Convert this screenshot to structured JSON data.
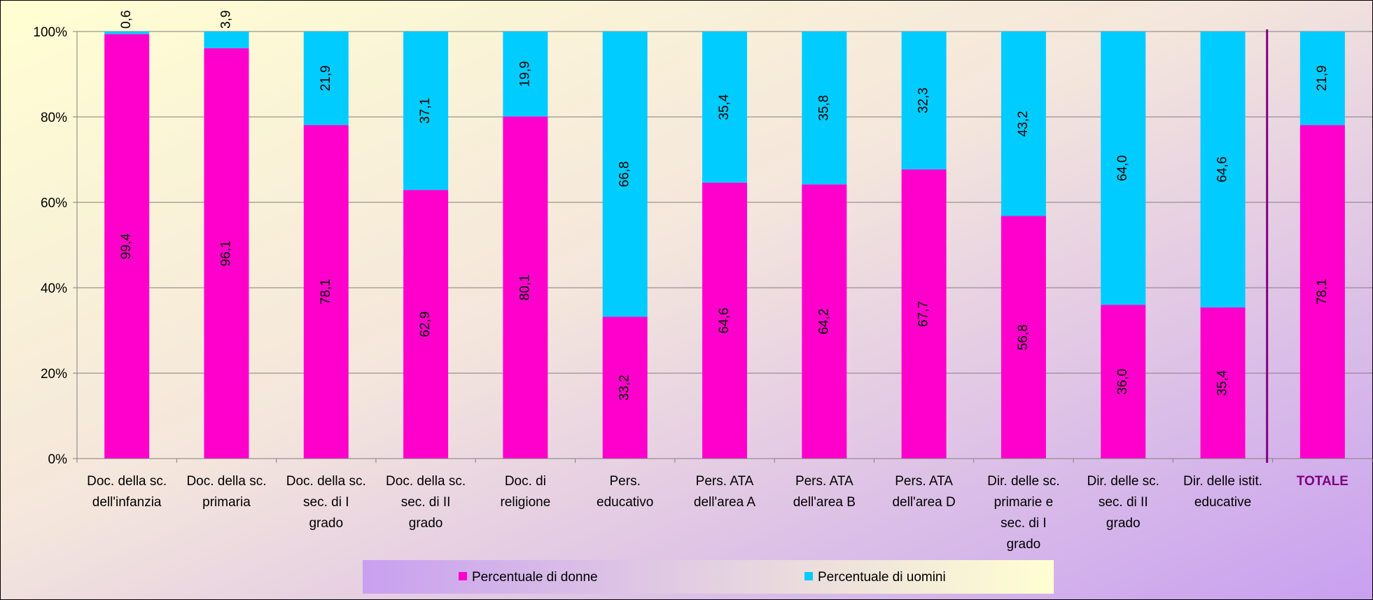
{
  "chart_data": {
    "type": "bar",
    "stacked": true,
    "percent": true,
    "categories": [
      [
        "Doc. della sc.",
        "dell'infanzia"
      ],
      [
        "Doc. della sc.",
        "primaria"
      ],
      [
        "Doc. della sc.",
        "sec. di I",
        "grado"
      ],
      [
        "Doc. della sc.",
        "sec. di II",
        "grado"
      ],
      [
        "Doc. di",
        "religione"
      ],
      [
        "Pers.",
        "educativo"
      ],
      [
        "Pers. ATA",
        "dell'area A"
      ],
      [
        "Pers. ATA",
        "dell'area B"
      ],
      [
        "Pers. ATA",
        "dell'area D"
      ],
      [
        "Dir. delle sc.",
        "primarie e",
        "sec. di I",
        "grado"
      ],
      [
        "Dir. delle sc.",
        "sec. di II",
        "grado"
      ],
      [
        "Dir. delle istit.",
        "educative"
      ],
      [
        "TOTALE"
      ]
    ],
    "series": [
      {
        "name": "Percentuale di donne",
        "color": "#FF00CC",
        "values": [
          99.4,
          96.1,
          78.1,
          62.9,
          80.1,
          33.2,
          64.6,
          64.2,
          67.7,
          56.8,
          36.0,
          35.4,
          78.1
        ],
        "labels": [
          "99,4",
          "96,1",
          "78,1",
          "62,9",
          "80,1",
          "33,2",
          "64,6",
          "64,2",
          "67,7",
          "56,8",
          "36,0",
          "35,4",
          "78,1"
        ]
      },
      {
        "name": "Percentuale di uomini",
        "color": "#00CCFF",
        "values": [
          0.6,
          3.9,
          21.9,
          37.1,
          19.9,
          66.8,
          35.4,
          35.8,
          32.3,
          43.2,
          64.0,
          64.6,
          21.9
        ],
        "labels": [
          "0,6",
          "3,9",
          "21,9",
          "37,1",
          "19,9",
          "66,8",
          "35,4",
          "35,8",
          "32,3",
          "43,2",
          "64,0",
          "64,6",
          "21,9"
        ]
      }
    ],
    "y_ticks": [
      "0%",
      "20%",
      "40%",
      "60%",
      "80%",
      "100%"
    ],
    "ylim": [
      0,
      100
    ],
    "grid": true,
    "legend": "bottom",
    "highlight_category": "TOTALE",
    "highlight_color": "#800080",
    "separator_before_last": true
  }
}
